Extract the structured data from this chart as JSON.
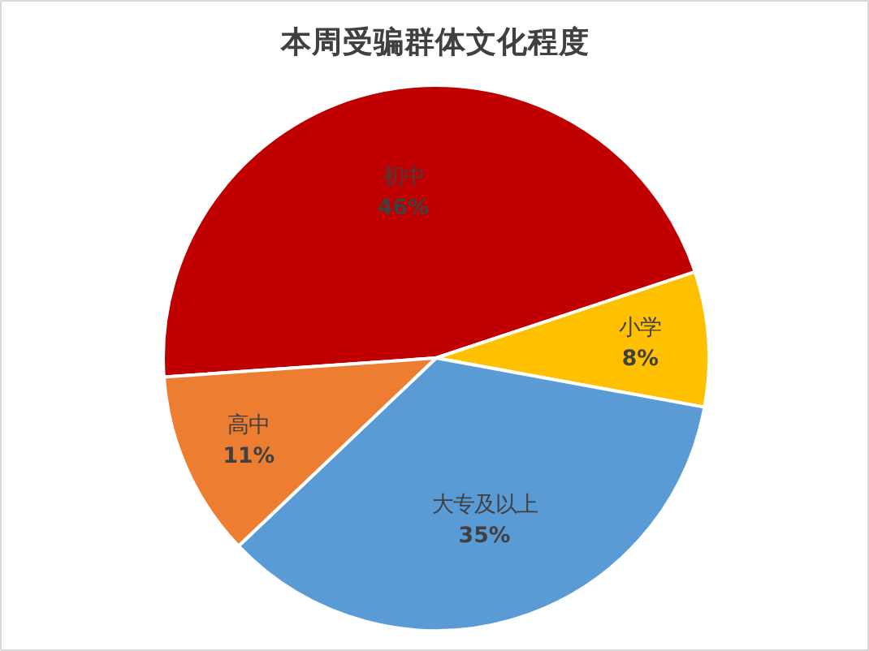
{
  "chart_data": {
    "type": "pie",
    "title": "本周受骗群体文化程度",
    "categories": [
      "初中",
      "小学",
      "大专及以上",
      "高中"
    ],
    "values": [
      46,
      8,
      35,
      11
    ],
    "colors": [
      "#c00000",
      "#ffc000",
      "#5b9bd5",
      "#ed7d31"
    ],
    "value_labels": [
      "46%",
      "8%",
      "35%",
      "11%"
    ]
  }
}
